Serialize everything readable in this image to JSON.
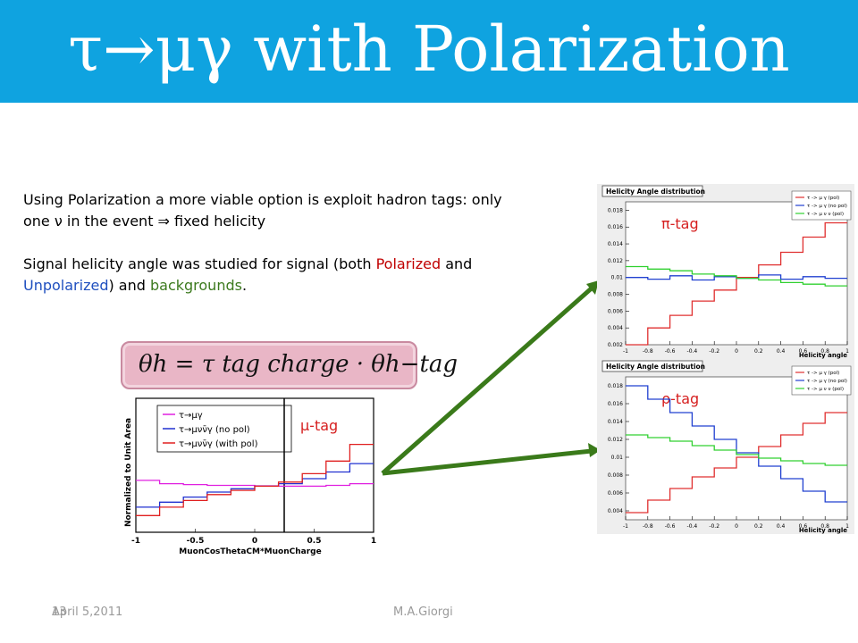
{
  "slide": {
    "title": "τ→μγ with Polarization",
    "para1": "Using Polarization a more viable option is exploit hadron tags: only one ν in the event ⇒ fixed helicity",
    "para2_parts": {
      "a": "Signal helicity angle was studied for signal (both ",
      "polarized": "Polarized",
      "b": " and ",
      "unpolarized": "Unpolarized",
      "c": ") and ",
      "backgrounds": "backgrounds",
      "d": "."
    },
    "formula": "θh = τ tag charge · θh−tag",
    "footer": {
      "date": "April 5,2011",
      "slide_number": "13",
      "author": "M.A.Giorgi"
    }
  },
  "colors": {
    "title_bg": "#0fa3e0",
    "red": "#c00000",
    "blue": "#1f4fbf",
    "green": "#3c7a1e",
    "arrow": "#3a7a1a"
  },
  "chart_data": [
    {
      "type": "line",
      "panel": "mu-tag",
      "tag_label": "μ-tag",
      "ylabel": "Normalized to Unit Area",
      "xlabel": "MuonCosThetaCM*MuonCharge",
      "xlim": [
        -1,
        1
      ],
      "x_ticks": [
        "-1",
        "-0.5",
        "0",
        "0.5",
        "1"
      ],
      "cut_line_x": 0.25,
      "legend": [
        "τ→μγ",
        "τ→μνν̄γ (no pol)",
        "τ→μνν̄γ (with pol)"
      ],
      "series": [
        {
          "name": "τ→μγ",
          "color": "#e020e0",
          "x": [
            -1,
            -0.8,
            -0.6,
            -0.4,
            -0.2,
            0,
            0.2,
            0.4,
            0.6,
            0.8,
            1
          ],
          "y": [
            0.62,
            0.58,
            0.57,
            0.56,
            0.56,
            0.555,
            0.55,
            0.55,
            0.56,
            0.58,
            0.6
          ]
        },
        {
          "name": "τ→μνν̄γ (no pol)",
          "color": "#2030d0",
          "x": [
            -1,
            -0.8,
            -0.6,
            -0.4,
            -0.2,
            0,
            0.2,
            0.4,
            0.6,
            0.8,
            1
          ],
          "y": [
            0.3,
            0.36,
            0.42,
            0.48,
            0.52,
            0.55,
            0.58,
            0.64,
            0.72,
            0.82,
            1.0
          ]
        },
        {
          "name": "τ→μνν̄γ (with pol)",
          "color": "#e02020",
          "x": [
            -1,
            -0.8,
            -0.6,
            -0.4,
            -0.2,
            0,
            0.2,
            0.4,
            0.6,
            0.8,
            1
          ],
          "y": [
            0.2,
            0.3,
            0.38,
            0.45,
            0.5,
            0.55,
            0.6,
            0.7,
            0.85,
            1.05,
            1.4
          ]
        }
      ]
    },
    {
      "type": "line",
      "panel": "pi-tag",
      "title": "Helicity Angle distribution",
      "tag_label": "π-tag",
      "xlabel": "Helicity angle",
      "xlim": [
        -1,
        1
      ],
      "ylim": [
        0.002,
        0.019
      ],
      "y_ticks": [
        "0.002",
        "0.004",
        "0.006",
        "0.008",
        "0.01",
        "0.012",
        "0.014",
        "0.016",
        "0.018"
      ],
      "x_ticks": [
        "-1",
        "-0.8",
        "-0.6",
        "-0.4",
        "-0.2",
        "0",
        "0.2",
        "0.4",
        "0.6",
        "0.8",
        "1"
      ],
      "legend": [
        "τ -> μ γ (pol)",
        "τ -> μ γ (no pol)",
        "τ -> μ ν ν (pol)"
      ],
      "series": [
        {
          "name": "τ -> μ γ (pol)",
          "color": "#e03030",
          "x": [
            -1,
            -0.8,
            -0.6,
            -0.4,
            -0.2,
            0,
            0.2,
            0.4,
            0.6,
            0.8,
            1
          ],
          "y": [
            0.002,
            0.004,
            0.0055,
            0.0072,
            0.0085,
            0.01,
            0.0115,
            0.013,
            0.0148,
            0.0165,
            0.018
          ]
        },
        {
          "name": "τ -> μ γ (no pol)",
          "color": "#2040d0",
          "x": [
            -1,
            -0.8,
            -0.6,
            -0.4,
            -0.2,
            0,
            0.2,
            0.4,
            0.6,
            0.8,
            1
          ],
          "y": [
            0.01,
            0.0098,
            0.0102,
            0.0097,
            0.0101,
            0.0099,
            0.0103,
            0.0098,
            0.0101,
            0.0099,
            0.01
          ]
        },
        {
          "name": "τ -> μ ν ν (pol)",
          "color": "#30d030",
          "x": [
            -1,
            -0.8,
            -0.6,
            -0.4,
            -0.2,
            0,
            0.2,
            0.4,
            0.6,
            0.8,
            1
          ],
          "y": [
            0.0113,
            0.011,
            0.0108,
            0.0104,
            0.0102,
            0.0099,
            0.0097,
            0.0094,
            0.0092,
            0.009,
            0.0088
          ]
        }
      ]
    },
    {
      "type": "line",
      "panel": "rho-tag",
      "title": "Helicity Angle distribution",
      "tag_label": "ρ-tag",
      "xlabel": "Helicity angle",
      "xlim": [
        -1,
        1
      ],
      "ylim": [
        0.003,
        0.019
      ],
      "y_ticks": [
        "0.004",
        "0.006",
        "0.008",
        "0.01",
        "0.012",
        "0.014",
        "0.016",
        "0.018"
      ],
      "x_ticks": [
        "-1",
        "-0.8",
        "-0.6",
        "-0.4",
        "-0.2",
        "0",
        "0.2",
        "0.4",
        "0.6",
        "0.8",
        "1"
      ],
      "legend": [
        "τ -> μ γ (pol)",
        "τ -> μ γ (no pol)",
        "τ -> μ ν ν (pol)"
      ],
      "series": [
        {
          "name": "τ -> μ γ (pol)",
          "color": "#e03030",
          "x": [
            -1,
            -0.8,
            -0.6,
            -0.4,
            -0.2,
            0,
            0.2,
            0.4,
            0.6,
            0.8,
            1
          ],
          "y": [
            0.0038,
            0.0052,
            0.0065,
            0.0078,
            0.0088,
            0.01,
            0.0112,
            0.0125,
            0.0138,
            0.015,
            0.016
          ]
        },
        {
          "name": "τ -> μ γ (no pol)",
          "color": "#2040d0",
          "x": [
            -1,
            -0.8,
            -0.6,
            -0.4,
            -0.2,
            0,
            0.2,
            0.4,
            0.6,
            0.8,
            1
          ],
          "y": [
            0.018,
            0.0165,
            0.015,
            0.0135,
            0.012,
            0.0105,
            0.009,
            0.0076,
            0.0062,
            0.005,
            0.004
          ]
        },
        {
          "name": "τ -> μ ν ν (pol)",
          "color": "#30d030",
          "x": [
            -1,
            -0.8,
            -0.6,
            -0.4,
            -0.2,
            0,
            0.2,
            0.4,
            0.6,
            0.8,
            1
          ],
          "y": [
            0.0125,
            0.0122,
            0.0118,
            0.0113,
            0.0108,
            0.0103,
            0.0099,
            0.0096,
            0.0093,
            0.0091,
            0.009
          ]
        }
      ]
    }
  ]
}
